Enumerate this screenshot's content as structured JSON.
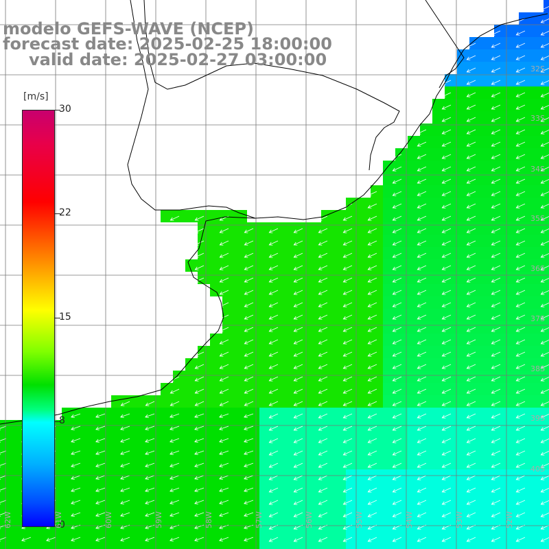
{
  "title": {
    "model": "modelo GEFS-WAVE (NCEP)",
    "forecast": "forecast date: 2025-02-25 18:00:00",
    "valid": "valid date: 2025-02-27 03:00:00"
  },
  "colorbar": {
    "unit": "[m/s]",
    "ticks": [
      "30",
      "22",
      "15",
      "8",
      "0"
    ],
    "tick_values": [
      30,
      22,
      15,
      8,
      0
    ],
    "min": 0,
    "max": 30
  },
  "lat_labels": [
    "32S",
    "33S",
    "34S",
    "35S",
    "36S",
    "37S",
    "38S",
    "39S",
    "40S"
  ],
  "lon_labels": [
    "62W",
    "61W",
    "60W",
    "59W",
    "58W",
    "57W",
    "56W",
    "55W",
    "54W",
    "53W",
    "52W"
  ],
  "colors": {
    "land": "#ffffff",
    "grid": "#777777",
    "coast": "#000000",
    "arrow": "#ffffff"
  }
}
